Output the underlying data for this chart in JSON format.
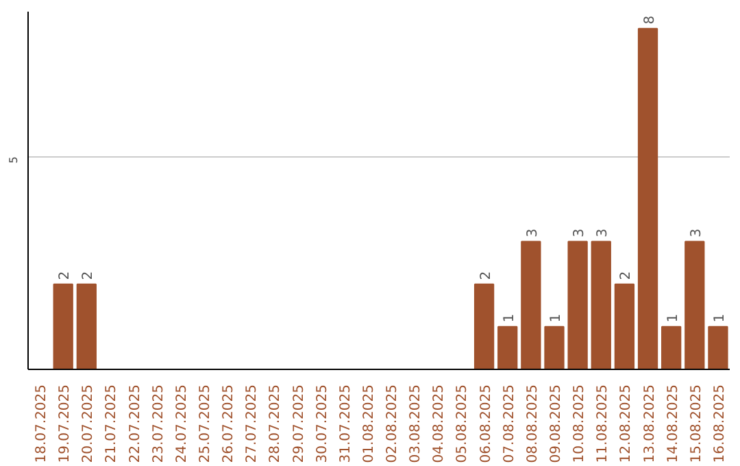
{
  "chart_data": {
    "type": "bar",
    "categories": [
      "18.07.2025",
      "19.07.2025",
      "20.07.2025",
      "21.07.2025",
      "22.07.2025",
      "23.07.2025",
      "24.07.2025",
      "25.07.2025",
      "26.07.2025",
      "27.07.2025",
      "28.07.2025",
      "29.07.2025",
      "30.07.2025",
      "31.07.2025",
      "01.08.2025",
      "02.08.2025",
      "03.08.2025",
      "04.08.2025",
      "05.08.2025",
      "06.08.2025",
      "07.08.2025",
      "08.08.2025",
      "09.08.2025",
      "10.08.2025",
      "11.08.2025",
      "12.08.2025",
      "13.08.2025",
      "14.08.2025",
      "15.08.2025",
      "16.08.2025"
    ],
    "values": [
      0,
      2,
      2,
      0,
      0,
      0,
      0,
      0,
      0,
      0,
      0,
      0,
      0,
      0,
      0,
      0,
      0,
      0,
      0,
      2,
      1,
      3,
      1,
      3,
      3,
      2,
      8,
      1,
      3,
      1
    ],
    "value_labels": [
      null,
      "2",
      "2",
      null,
      null,
      null,
      null,
      null,
      null,
      null,
      null,
      null,
      null,
      null,
      null,
      null,
      null,
      null,
      null,
      "2",
      "1",
      "3",
      "1",
      "3",
      "3",
      "2",
      "8",
      "1",
      "3",
      "1"
    ],
    "color": "#a0522d",
    "ylim": [
      0,
      8.4
    ],
    "yticks": [
      5
    ],
    "grid": "y"
  }
}
